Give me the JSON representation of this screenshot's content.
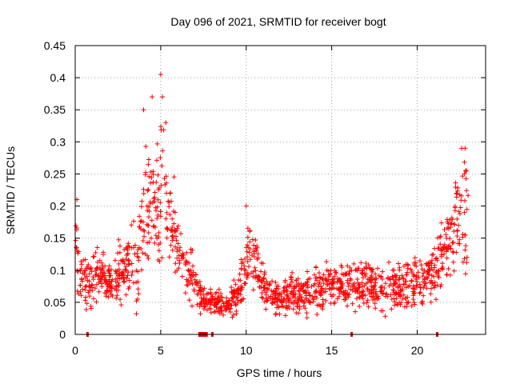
{
  "chart_data": {
    "type": "scatter",
    "title": "Day 096 of 2021, SRMTID for receiver bogt",
    "xlabel": "GPS time / hours",
    "ylabel": "SRMTID / TECUs",
    "xlim": [
      0,
      24
    ],
    "ylim": [
      0,
      0.45
    ],
    "xticks": [
      0,
      5,
      10,
      15,
      20
    ],
    "yticks": [
      0,
      0.05,
      0.1,
      0.15,
      0.2,
      0.25,
      0.3,
      0.35,
      0.4,
      0.45
    ],
    "xtick_labels": [
      "0",
      "5",
      "10",
      "15",
      "20"
    ],
    "ytick_labels": [
      "0",
      "0.05",
      "0.1",
      "0.15",
      "0.2",
      "0.25",
      "0.3",
      "0.35",
      "0.4",
      "0.45"
    ],
    "grid": true,
    "marker": "+",
    "series_color": "#ff0000",
    "flag_color": "#dd0000",
    "profile": {
      "description": "approximate envelope of the dense scatter: central SRMTID value vs hour with spread",
      "hours": [
        0.0,
        0.3,
        0.7,
        1.0,
        1.5,
        2.0,
        2.5,
        3.0,
        3.3,
        3.6,
        4.0,
        4.3,
        4.6,
        5.0,
        5.3,
        5.6,
        5.9,
        6.2,
        6.6,
        7.0,
        7.3,
        7.6,
        8.0,
        8.5,
        9.0,
        9.5,
        9.8,
        10.0,
        10.3,
        10.6,
        11.0,
        11.5,
        12.0,
        13.0,
        14.0,
        15.0,
        16.0,
        17.0,
        18.0,
        19.0,
        20.0,
        20.5,
        21.0,
        21.5,
        22.0,
        22.5,
        23.0
      ],
      "center": [
        0.13,
        0.09,
        0.07,
        0.09,
        0.1,
        0.08,
        0.09,
        0.1,
        0.12,
        0.11,
        0.17,
        0.2,
        0.19,
        0.25,
        0.22,
        0.17,
        0.15,
        0.12,
        0.1,
        0.08,
        0.06,
        0.05,
        0.05,
        0.05,
        0.05,
        0.06,
        0.09,
        0.12,
        0.13,
        0.11,
        0.07,
        0.065,
        0.06,
        0.06,
        0.07,
        0.075,
        0.075,
        0.08,
        0.07,
        0.075,
        0.085,
        0.09,
        0.1,
        0.13,
        0.15,
        0.18,
        0.19
      ],
      "spread": [
        0.05,
        0.04,
        0.03,
        0.035,
        0.035,
        0.03,
        0.035,
        0.04,
        0.06,
        0.05,
        0.08,
        0.1,
        0.08,
        0.11,
        0.08,
        0.06,
        0.05,
        0.04,
        0.035,
        0.03,
        0.025,
        0.02,
        0.02,
        0.02,
        0.02,
        0.025,
        0.04,
        0.05,
        0.05,
        0.04,
        0.03,
        0.025,
        0.025,
        0.025,
        0.03,
        0.03,
        0.03,
        0.03,
        0.03,
        0.03,
        0.035,
        0.035,
        0.04,
        0.05,
        0.06,
        0.07,
        0.08
      ],
      "point_count": 1500,
      "notable_points": [
        [
          0.1,
          0.21
        ],
        [
          4.0,
          0.35
        ],
        [
          4.5,
          0.37
        ],
        [
          5.0,
          0.405
        ],
        [
          5.1,
          0.37
        ],
        [
          5.3,
          0.33
        ],
        [
          10.0,
          0.2
        ],
        [
          22.6,
          0.29
        ],
        [
          22.8,
          0.29
        ]
      ]
    },
    "flags": [
      {
        "x0": 0.65,
        "x1": 0.75
      },
      {
        "x0": 7.2,
        "x1": 7.75
      },
      {
        "x0": 7.95,
        "x1": 8.05
      },
      {
        "x0": 16.1,
        "x1": 16.2
      },
      {
        "x0": 21.1,
        "x1": 21.2
      }
    ]
  }
}
